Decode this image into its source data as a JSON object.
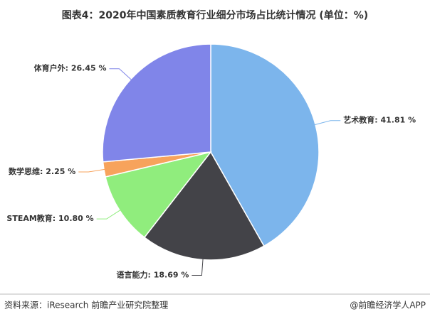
{
  "chart_data": {
    "type": "pie",
    "title": "图表4：2020年中国素质教育行业细分市场占比统计情况 (单位：%)",
    "labels": [
      "艺术教育: 41.81 %",
      "语言能力: 18.69 %",
      "STEAM教育: 10.80 %",
      "数学思维: 2.25 %",
      "体育户外: 26.45 %"
    ],
    "values": [
      41.81,
      18.69,
      10.8,
      2.25,
      26.45
    ],
    "colors": [
      "#7cb5ec",
      "#434348",
      "#90ed7d",
      "#f7a35c",
      "#8085e9"
    ]
  },
  "footer": {
    "source": "资料来源：iResearch 前瞻产业研究院整理",
    "brand": "@前瞻经济学人APP"
  }
}
